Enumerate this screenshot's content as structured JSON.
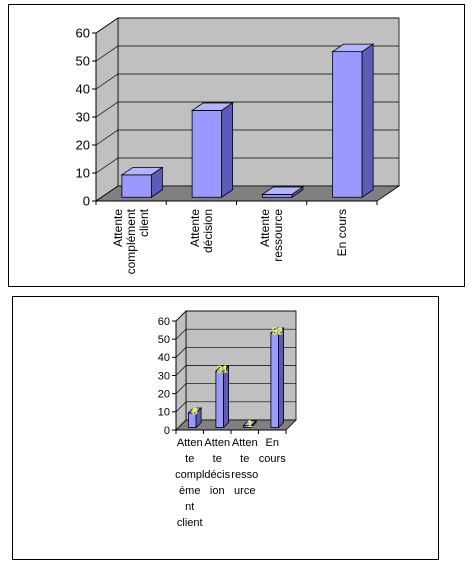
{
  "chart_data": [
    {
      "type": "bar",
      "style": "3d-column",
      "categories": [
        "Attente complément client",
        "Attente décision",
        "Attente ressource",
        "En cours"
      ],
      "category_label_lines": [
        [
          "Attente",
          "complément",
          "client"
        ],
        [
          "Attente",
          "décision"
        ],
        [
          "Attente",
          "ressource"
        ],
        [
          "En cours"
        ]
      ],
      "values": [
        8,
        31,
        1,
        52
      ],
      "yticks": [
        "0",
        "10",
        "20",
        "30",
        "40",
        "50",
        "60"
      ],
      "ylim": [
        0,
        60
      ],
      "grid": true,
      "data_labels": false,
      "title": "",
      "xlabel": "",
      "ylabel": "",
      "colors": {
        "bar": "#9999ff",
        "wall": "#c0c0c0",
        "floor": "#808080"
      }
    },
    {
      "type": "bar",
      "style": "3d-column",
      "categories": [
        "Attente complément client",
        "Attente décision",
        "Attente ressource",
        "En cours"
      ],
      "category_label_lines": [
        [
          "Atten",
          "te",
          "compl",
          "éme",
          "nt",
          "client"
        ],
        [
          "Atten",
          "te",
          "décis",
          "ion"
        ],
        [
          "Atten",
          "te",
          "resso",
          "urce"
        ],
        [
          "En",
          "cours"
        ]
      ],
      "values": [
        8,
        31,
        1,
        52
      ],
      "data_label_text": [
        "8",
        "31",
        "1",
        "52"
      ],
      "yticks": [
        "0",
        "10",
        "20",
        "30",
        "40",
        "50",
        "60"
      ],
      "ylim": [
        0,
        60
      ],
      "grid": true,
      "data_labels": true,
      "title": "",
      "xlabel": "",
      "ylabel": "",
      "colors": {
        "bar": "#9999ff",
        "wall": "#c0c0c0",
        "floor": "#808080",
        "data_label": "#ffff33"
      }
    }
  ]
}
